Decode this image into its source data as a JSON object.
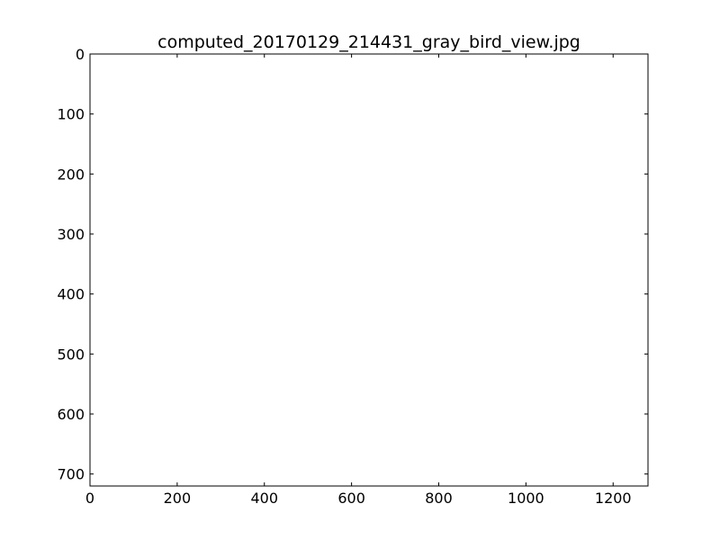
{
  "chart_data": {
    "type": "heatmap",
    "title": "computed_20170129_214431_gray_bird_view.jpg",
    "xlabel": "",
    "ylabel": "",
    "xlim": [
      0,
      1280
    ],
    "ylim": [
      720,
      0
    ],
    "y_inverted": true,
    "x_ticks": [
      0,
      200,
      400,
      600,
      800,
      1000,
      1200
    ],
    "y_ticks": [
      0,
      100,
      200,
      300,
      400,
      500,
      600,
      700
    ],
    "grid": false,
    "image_content": "blank (white)"
  },
  "colors": {
    "background": "#ffffff",
    "axes": "#000000",
    "plot_area": "#ffffff"
  }
}
